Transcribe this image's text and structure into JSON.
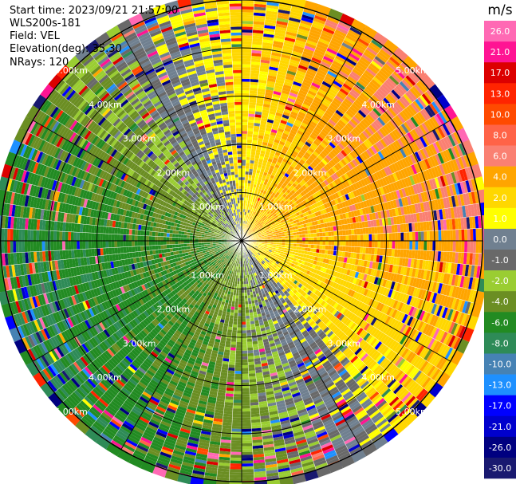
{
  "info": {
    "start_time": "Start time: 2023/09/21 21:57:00",
    "instrument": "WLS200s-181",
    "field": "Field: VEL",
    "elevation": "Elevation(deg): 35.30",
    "nrays": "NRays: 120"
  },
  "chart_data": {
    "type": "heatmap",
    "projection": "polar-ppi",
    "field": "VEL",
    "units": "m/s",
    "nrays": 120,
    "max_range_km": 5.2,
    "range_rings_km": [
      1.0,
      2.0,
      3.0,
      4.0,
      5.0
    ],
    "ring_labels": [
      "1.00km",
      "2.00km",
      "3.00km",
      "4.00km",
      "5.00km"
    ],
    "radials_deg": [
      0,
      30,
      60,
      90,
      120,
      150,
      180,
      210,
      240,
      270,
      300,
      330
    ],
    "colorbar": {
      "label": "m/s",
      "ticks": [
        "26.0",
        "21.0",
        "17.0",
        "13.0",
        "10.0",
        "8.0",
        "6.0",
        "4.0",
        "2.0",
        "1.0",
        "0.0",
        "-1.0",
        "-2.0",
        "-4.0",
        "-6.0",
        "-8.0",
        "-10.0",
        "-13.0",
        "-17.0",
        "-21.0",
        "-26.0",
        "-30.0"
      ],
      "bins": [
        {
          "from": 26,
          "to": 30,
          "color": "#ff69b4"
        },
        {
          "from": 21,
          "to": 26,
          "color": "#ff1493"
        },
        {
          "from": 17,
          "to": 21,
          "color": "#dc0000"
        },
        {
          "from": 13,
          "to": 17,
          "color": "#ff2400"
        },
        {
          "from": 10,
          "to": 13,
          "color": "#ff4a00"
        },
        {
          "from": 8,
          "to": 10,
          "color": "#ff6347"
        },
        {
          "from": 6,
          "to": 8,
          "color": "#fa8072"
        },
        {
          "from": 4,
          "to": 6,
          "color": "#ffa500"
        },
        {
          "from": 2,
          "to": 4,
          "color": "#ffd700"
        },
        {
          "from": 1,
          "to": 2,
          "color": "#ffff00"
        },
        {
          "from": 0,
          "to": 1,
          "color": "#708090"
        },
        {
          "from": -1,
          "to": 0,
          "color": "#696969"
        },
        {
          "from": -2,
          "to": -1,
          "color": "#9acd32"
        },
        {
          "from": -4,
          "to": -2,
          "color": "#6b8e23"
        },
        {
          "from": -6,
          "to": -4,
          "color": "#228b22"
        },
        {
          "from": -8,
          "to": -6,
          "color": "#2e8b57"
        },
        {
          "from": -10,
          "to": -8,
          "color": "#4682b4"
        },
        {
          "from": -13,
          "to": -10,
          "color": "#1e90ff"
        },
        {
          "from": -17,
          "to": -13,
          "color": "#0000ff"
        },
        {
          "from": -21,
          "to": -17,
          "color": "#0000cd"
        },
        {
          "from": -26,
          "to": -21,
          "color": "#000080"
        },
        {
          "from": -30,
          "to": -26,
          "color": "#191970"
        }
      ]
    },
    "pattern": {
      "description_values": "radial velocity dipole: positive (toward yellow/orange/red) in the east-northeast, negative (green) in the west-southwest",
      "peak_positive_azimuth_deg": 65,
      "peak_negative_azimuth_deg": 245,
      "amplitude_ms": 6.5,
      "noise_fraction_far_range": 0.22
    }
  }
}
